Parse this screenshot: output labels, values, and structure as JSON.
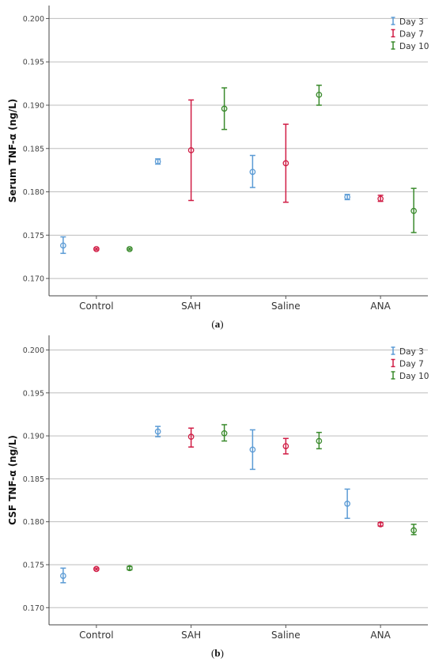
{
  "chart_data": [
    {
      "type": "errorbar",
      "caption": "(a)",
      "ylabel": "Serum TNF-α (ng/L)",
      "ylim": [
        0.168,
        0.2015
      ],
      "yticks": [
        "0.170",
        "0.175",
        "0.180",
        "0.185",
        "0.190",
        "0.195",
        "0.200"
      ],
      "categories": [
        "Control",
        "SAH",
        "Saline",
        "ANA"
      ],
      "legend_position": "top-right",
      "series": [
        {
          "name": "Day 3",
          "color": "#5b9bd5",
          "mean": [
            0.1738,
            0.1835,
            0.1823,
            0.1794
          ],
          "low": [
            0.1729,
            0.1832,
            0.1805,
            0.1791
          ],
          "high": [
            0.1748,
            0.1838,
            0.1842,
            0.1797
          ]
        },
        {
          "name": "Day 7",
          "color": "#d01c44",
          "mean": [
            0.1734,
            0.1848,
            0.1833,
            0.1792
          ],
          "low": [
            0.1733,
            0.179,
            0.1788,
            0.1789
          ],
          "high": [
            0.1735,
            0.1906,
            0.1878,
            0.1796
          ]
        },
        {
          "name": "Day 10",
          "color": "#3a8a2c",
          "mean": [
            0.1734,
            0.1896,
            0.1912,
            0.1778
          ],
          "low": [
            0.1733,
            0.1872,
            0.19,
            0.1753
          ],
          "high": [
            0.1735,
            0.192,
            0.1923,
            0.1804
          ]
        }
      ]
    },
    {
      "type": "errorbar",
      "caption": "(b)",
      "ylabel": "CSF TNF-α (ng/L)",
      "ylim": [
        0.168,
        0.2017
      ],
      "yticks": [
        "0.170",
        "0.175",
        "0.180",
        "0.185",
        "0.190",
        "0.195",
        "0.200"
      ],
      "categories": [
        "Control",
        "SAH",
        "Saline",
        "ANA"
      ],
      "legend_position": "top-right",
      "series": [
        {
          "name": "Day 3",
          "color": "#5b9bd5",
          "mean": [
            0.1737,
            0.1905,
            0.1884,
            0.1821
          ],
          "low": [
            0.1729,
            0.1899,
            0.1861,
            0.1804
          ],
          "high": [
            0.1746,
            0.1911,
            0.1907,
            0.1838
          ]
        },
        {
          "name": "Day 7",
          "color": "#d01c44",
          "mean": [
            0.1745,
            0.1899,
            0.1888,
            0.1797
          ],
          "low": [
            0.1744,
            0.1887,
            0.1879,
            0.1795
          ],
          "high": [
            0.1746,
            0.1909,
            0.1897,
            0.1799
          ]
        },
        {
          "name": "Day 10",
          "color": "#3a8a2c",
          "mean": [
            0.1746,
            0.1903,
            0.1894,
            0.179
          ],
          "low": [
            0.1744,
            0.1894,
            0.1885,
            0.1785
          ],
          "high": [
            0.1748,
            0.1913,
            0.1904,
            0.1797
          ]
        }
      ]
    }
  ]
}
